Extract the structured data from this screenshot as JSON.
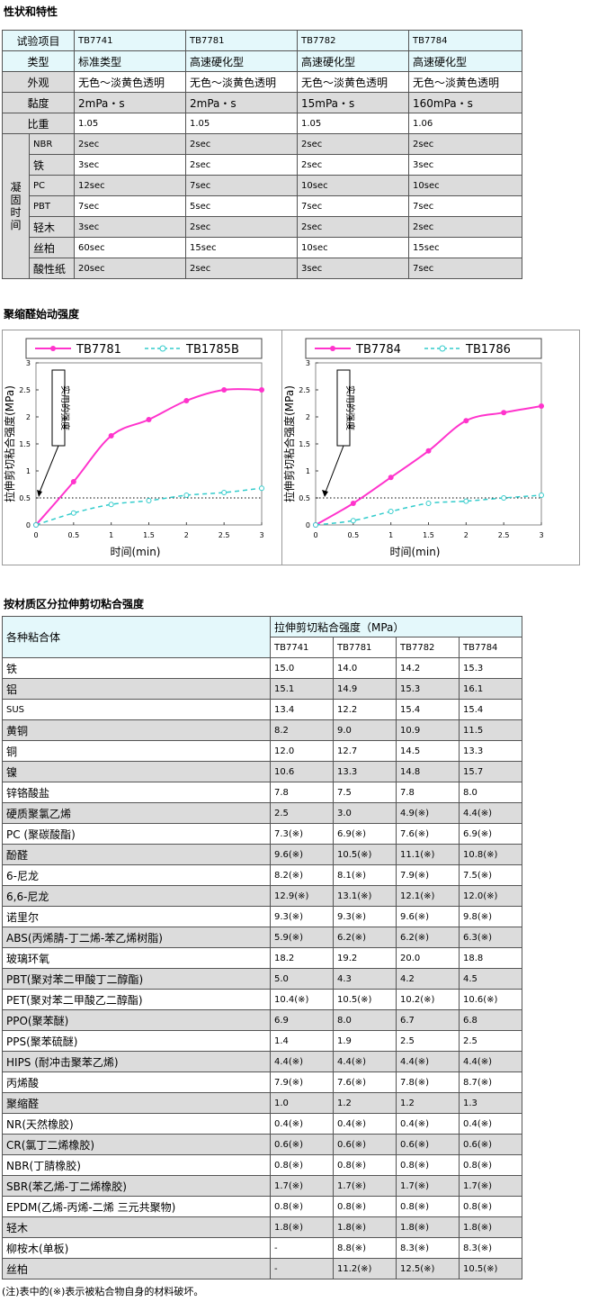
{
  "section1": {
    "title": "性状和特性",
    "header": [
      "试验项目",
      "TB7741",
      "TB7781",
      "TB7782",
      "TB7784"
    ],
    "rows": [
      [
        "类型",
        "标准类型",
        "高速硬化型",
        "高速硬化型",
        "高速硬化型"
      ],
      [
        "外观",
        "无色～淡黄色透明",
        "无色～淡黄色透明",
        "无色～淡黄色透明",
        "无色～淡黄色透明"
      ],
      [
        "黏度",
        "2mPa・s",
        "2mPa・s",
        "15mPa・s",
        "160mPa・s"
      ],
      [
        "比重",
        "1.05",
        "1.05",
        "1.05",
        "1.06"
      ]
    ],
    "cure_label": "凝固时间",
    "cure_rows": [
      [
        "NBR",
        "2sec",
        "2sec",
        "2sec",
        "2sec"
      ],
      [
        "铁",
        "3sec",
        "2sec",
        "2sec",
        "3sec"
      ],
      [
        "PC",
        "12sec",
        "7sec",
        "10sec",
        "10sec"
      ],
      [
        "PBT",
        "7sec",
        "5sec",
        "7sec",
        "7sec"
      ],
      [
        "轻木",
        "3sec",
        "2sec",
        "2sec",
        "2sec"
      ],
      [
        "丝柏",
        "60sec",
        "15sec",
        "10sec",
        "15sec"
      ],
      [
        "酸性纸",
        "20sec",
        "2sec",
        "3sec",
        "7sec"
      ]
    ]
  },
  "section2": {
    "title": "聚缩醛始动强度"
  },
  "chart_data": [
    {
      "type": "line",
      "x": [
        0,
        0.5,
        1,
        1.5,
        2,
        2.5,
        3
      ],
      "series": [
        {
          "name": "TB7781",
          "values": [
            0,
            0.8,
            1.65,
            1.95,
            2.3,
            2.5,
            2.5
          ]
        },
        {
          "name": "TB1785B",
          "values": [
            0,
            0.22,
            0.38,
            0.45,
            0.55,
            0.6,
            0.68
          ]
        }
      ],
      "xlabel": "时间(min)",
      "ylabel": "拉伸剪切粘合强度(MPa)",
      "xlim": [
        0,
        3
      ],
      "ylim": [
        0,
        3
      ],
      "xticks": [
        "0",
        "0.5",
        "1",
        "1.5",
        "2",
        "2.5",
        "3"
      ],
      "yticks": [
        "0",
        "0.5",
        "1",
        "1.5",
        "2",
        "2.5",
        "3"
      ],
      "annotation": "实用的强度",
      "reference_line": 0.5,
      "colors": [
        "#ff33cc",
        "#33cccc"
      ]
    },
    {
      "type": "line",
      "x": [
        0,
        0.5,
        1,
        1.5,
        2,
        2.5,
        3
      ],
      "series": [
        {
          "name": "TB7784",
          "values": [
            0,
            0.4,
            0.88,
            1.37,
            1.93,
            2.08,
            2.2
          ]
        },
        {
          "name": "TB1786",
          "values": [
            0,
            0.08,
            0.25,
            0.4,
            0.44,
            0.5,
            0.55
          ]
        }
      ],
      "xlabel": "时间(min)",
      "ylabel": "拉伸剪切粘合强度(MPa)",
      "xlim": [
        0,
        3
      ],
      "ylim": [
        0,
        3
      ],
      "xticks": [
        "0",
        "0.5",
        "1",
        "1.5",
        "2",
        "2.5",
        "3"
      ],
      "yticks": [
        "0",
        "0.5",
        "1",
        "1.5",
        "2",
        "2.5",
        "3"
      ],
      "annotation": "实用的强度",
      "reference_line": 0.5,
      "colors": [
        "#ff33cc",
        "#33cccc"
      ]
    }
  ],
  "section3": {
    "title": "按材质区分拉伸剪切粘合强度",
    "first_col_header": "各种粘合体",
    "group_header": "拉伸剪切粘合强度（MPa）",
    "products": [
      "TB7741",
      "TB7781",
      "TB7782",
      "TB7784"
    ],
    "rows": [
      [
        "铁",
        "15.0",
        "14.0",
        "14.2",
        "15.3"
      ],
      [
        "铝",
        "15.1",
        "14.9",
        "15.3",
        "16.1"
      ],
      [
        "SUS",
        "13.4",
        "12.2",
        "15.4",
        "15.4"
      ],
      [
        "黄铜",
        "8.2",
        "9.0",
        "10.9",
        "11.5"
      ],
      [
        "铜",
        "12.0",
        "12.7",
        "14.5",
        "13.3"
      ],
      [
        "镍",
        "10.6",
        "13.3",
        "14.8",
        "15.7"
      ],
      [
        "锌铬酸盐",
        "7.8",
        "7.5",
        "7.8",
        "8.0"
      ],
      [
        "硬质聚氯乙烯",
        "2.5",
        "3.0",
        "4.9(※)",
        "4.4(※)"
      ],
      [
        "PC (聚碳酸酯)",
        "7.3(※)",
        "6.9(※)",
        "7.6(※)",
        "6.9(※)"
      ],
      [
        "酚醛",
        "9.6(※)",
        "10.5(※)",
        "11.1(※)",
        "10.8(※)"
      ],
      [
        "6-尼龙",
        "8.2(※)",
        "8.1(※)",
        "7.9(※)",
        "7.5(※)"
      ],
      [
        "6,6-尼龙",
        "12.9(※)",
        "13.1(※)",
        "12.1(※)",
        "12.0(※)"
      ],
      [
        "诺里尔",
        "9.3(※)",
        "9.3(※)",
        "9.6(※)",
        "9.8(※)"
      ],
      [
        "ABS(丙烯腈-丁二烯-苯乙烯树脂)",
        "5.9(※)",
        "6.2(※)",
        "6.2(※)",
        "6.3(※)"
      ],
      [
        "玻璃环氧",
        "18.2",
        "19.2",
        "20.0",
        "18.8"
      ],
      [
        "PBT(聚对苯二甲酸丁二醇酯)",
        "5.0",
        "4.3",
        "4.2",
        "4.5"
      ],
      [
        "PET(聚对苯二甲酸乙二醇酯)",
        "10.4(※)",
        "10.5(※)",
        "10.2(※)",
        "10.6(※)"
      ],
      [
        "PPO(聚苯醚)",
        "6.9",
        "8.0",
        "6.7",
        "6.8"
      ],
      [
        "PPS(聚苯硫醚)",
        "1.4",
        "1.9",
        "2.5",
        "2.5"
      ],
      [
        "HIPS (耐冲击聚苯乙烯)",
        "4.4(※)",
        "4.4(※)",
        "4.4(※)",
        "4.4(※)"
      ],
      [
        "丙烯酸",
        "7.9(※)",
        "7.6(※)",
        "7.8(※)",
        "8.7(※)"
      ],
      [
        "聚缩醛",
        "1.0",
        "1.2",
        "1.2",
        "1.3"
      ],
      [
        "NR(天然橡胶)",
        "0.4(※)",
        "0.4(※)",
        "0.4(※)",
        "0.4(※)"
      ],
      [
        "CR(氯丁二烯橡胶)",
        "0.6(※)",
        "0.6(※)",
        "0.6(※)",
        "0.6(※)"
      ],
      [
        "NBR(丁腈橡胶)",
        "0.8(※)",
        "0.8(※)",
        "0.8(※)",
        "0.8(※)"
      ],
      [
        "SBR(苯乙烯-丁二烯橡胶)",
        "1.7(※)",
        "1.7(※)",
        "1.7(※)",
        "1.7(※)"
      ],
      [
        "EPDM(乙烯-丙烯-二烯 三元共聚物)",
        "0.8(※)",
        "0.8(※)",
        "0.8(※)",
        "0.8(※)"
      ],
      [
        "轻木",
        "1.8(※)",
        "1.8(※)",
        "1.8(※)",
        "1.8(※)"
      ],
      [
        "柳桉木(单板)",
        "-",
        "8.8(※)",
        "8.3(※)",
        "8.3(※)"
      ],
      [
        "丝柏",
        "-",
        "11.2(※)",
        "12.5(※)",
        "10.5(※)"
      ]
    ],
    "note": "(注)表中的(※)表示被粘合物自身的材料破坏。"
  }
}
